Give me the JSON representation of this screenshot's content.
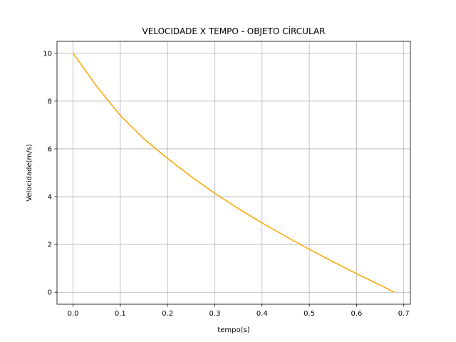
{
  "chart_data": {
    "type": "line",
    "title": "VELOCIDADE X TEMPO - OBJETO CÍRCULAR",
    "xlabel": "tempo(s)",
    "ylabel": "Velocidade(m/s)",
    "xlim": [
      -0.034,
      0.714
    ],
    "ylim": [
      -0.5,
      10.5
    ],
    "xticks": [
      0.0,
      0.1,
      0.2,
      0.3,
      0.4,
      0.5,
      0.6,
      0.7
    ],
    "xtick_labels": [
      "0.0",
      "0.1",
      "0.2",
      "0.3",
      "0.4",
      "0.5",
      "0.6",
      "0.7"
    ],
    "yticks": [
      0,
      2,
      4,
      6,
      8,
      10
    ],
    "ytick_labels": [
      "0",
      "2",
      "4",
      "6",
      "8",
      "10"
    ],
    "grid": true,
    "series": [
      {
        "color": "#ffa500",
        "x": [
          0.0,
          0.05,
          0.1,
          0.15,
          0.2,
          0.25,
          0.3,
          0.35,
          0.4,
          0.45,
          0.5,
          0.55,
          0.6,
          0.65,
          0.68
        ],
        "y": [
          10.0,
          8.62,
          7.4,
          6.42,
          5.6,
          4.84,
          4.14,
          3.5,
          2.9,
          2.34,
          1.8,
          1.28,
          0.78,
          0.3,
          0.0
        ]
      }
    ]
  }
}
